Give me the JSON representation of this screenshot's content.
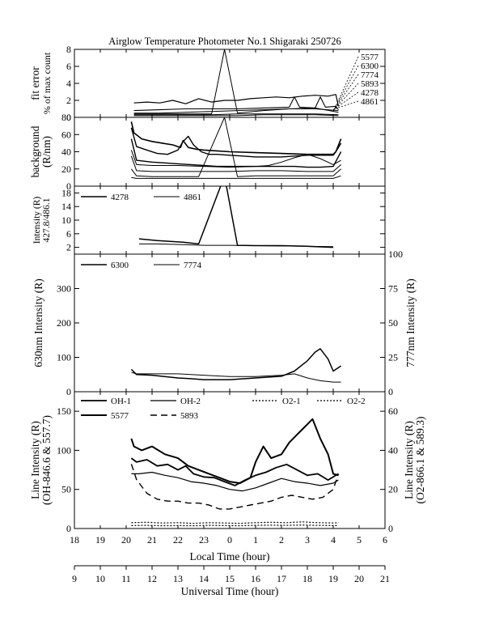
{
  "title": "Airglow Temperature Photometer No.1  Shigaraki  250726",
  "chart_data": [
    {
      "type": "line",
      "id": "fit-error",
      "ylabel": [
        "fit error",
        "% of max count"
      ],
      "ylim": [
        0,
        8
      ],
      "yticks": [
        0,
        2,
        4,
        6,
        8
      ],
      "xlim": [
        18,
        30
      ],
      "legend": [
        "5577",
        "6300",
        "7774",
        "5893",
        "4278",
        "4861"
      ],
      "series": [
        {
          "name": "5577",
          "width": 1.2,
          "dash": "",
          "x": [
            20.3,
            20.8,
            21.3,
            21.8,
            22.3,
            22.8,
            23.3,
            23.8,
            24.3,
            24.8,
            25.3,
            25.8,
            26.3,
            26.8,
            27.3,
            27.8,
            28.1,
            28.2
          ],
          "y": [
            1.7,
            1.8,
            1.7,
            2.0,
            1.6,
            2.2,
            1.8,
            2.0,
            2.0,
            2.2,
            2.3,
            2.4,
            2.3,
            2.5,
            2.6,
            2.5,
            2.7,
            1.3
          ]
        },
        {
          "name": "6300",
          "width": 1.1,
          "dash": "",
          "x": [
            20.3,
            21.3,
            22.3,
            23.3,
            24.3,
            25.3,
            26.3,
            26.5,
            26.7,
            27.3,
            27.5,
            27.7,
            28.1,
            28.2
          ],
          "y": [
            0.8,
            0.9,
            1.0,
            1.0,
            1.0,
            1.1,
            1.2,
            2.4,
            1.2,
            1.1,
            2.4,
            1.2,
            1.3,
            0.9
          ]
        },
        {
          "name": "7774",
          "width": 1,
          "dash": "",
          "x": [
            20.3,
            21.3,
            22.3,
            22.8,
            23.3,
            23.8,
            24.3,
            25.3,
            26.3,
            27.3,
            28.2
          ],
          "y": [
            0.4,
            0.4,
            0.4,
            0.4,
            0.4,
            8.0,
            0.5,
            0.8,
            1.0,
            1.1,
            0.6
          ]
        },
        {
          "name": "5893",
          "width": 1,
          "dash": "",
          "x": [
            20.3,
            21.3,
            22.3,
            23.3,
            24.3,
            25.3,
            26.3,
            27.3,
            28.2
          ],
          "y": [
            0.5,
            0.5,
            0.6,
            0.7,
            0.8,
            0.9,
            1.0,
            1.0,
            0.8
          ]
        },
        {
          "name": "4278",
          "width": 1,
          "dash": "",
          "x": [
            20.3,
            21.3,
            22.3,
            23.3,
            24.3,
            25.3,
            26.3,
            27.3,
            28.2
          ],
          "y": [
            0.3,
            0.3,
            0.3,
            0.3,
            0.4,
            0.4,
            0.4,
            0.4,
            0.3
          ]
        },
        {
          "name": "4861",
          "width": 1,
          "dash": "",
          "x": [
            20.3,
            21.3,
            22.3,
            23.3,
            24.3,
            25.3,
            26.3,
            27.3,
            28.2
          ],
          "y": [
            0.2,
            0.2,
            0.2,
            0.2,
            0.2,
            0.3,
            0.3,
            0.3,
            0.2
          ]
        }
      ]
    },
    {
      "type": "line",
      "id": "background",
      "ylabel": [
        "background",
        "(R/nm)"
      ],
      "ylim": [
        0,
        80
      ],
      "yticks": [
        0,
        20,
        40,
        60,
        80
      ],
      "xlim": [
        18,
        30
      ],
      "series": [
        {
          "name": "",
          "width": 1.6,
          "dash": "",
          "x": [
            20.2,
            20.3,
            20.6,
            21.0,
            21.4,
            21.8,
            22.1,
            22.2,
            22.4,
            22.7,
            23.0,
            23.5,
            24.0,
            25.0,
            26.0,
            27.0,
            28.0,
            28.1,
            28.3
          ],
          "y": [
            75,
            62,
            55,
            52,
            50,
            48,
            45,
            53,
            45,
            43,
            42,
            41,
            40,
            39,
            38,
            37,
            37,
            40,
            55
          ]
        },
        {
          "name": "",
          "width": 1.4,
          "dash": "",
          "x": [
            20.2,
            20.4,
            20.8,
            21.2,
            21.6,
            22.0,
            22.2,
            22.4,
            22.6,
            22.9,
            23.2,
            23.5,
            24.0,
            24.5,
            25.0,
            25.5,
            26.0,
            26.5,
            27.0,
            27.5,
            28.0,
            28.1,
            28.3
          ],
          "y": [
            68,
            46,
            42,
            38,
            37,
            42,
            52,
            58,
            48,
            40,
            37,
            37,
            36,
            35,
            34,
            34,
            34,
            35,
            36,
            36,
            36,
            40,
            50
          ]
        },
        {
          "name": "",
          "width": 1.4,
          "dash": "",
          "x": [
            20.2,
            20.4,
            21.0,
            21.5,
            22.0,
            22.5,
            23.0,
            23.5,
            24.0,
            24.5,
            25.0,
            25.5,
            26.0,
            26.5,
            27.0,
            27.5,
            28.0,
            28.3
          ],
          "y": [
            55,
            30,
            28,
            27,
            26,
            25,
            24,
            23,
            23,
            23,
            23,
            23,
            23,
            23,
            22,
            22,
            23,
            40
          ]
        },
        {
          "name": "",
          "width": 1,
          "dash": "",
          "x": [
            20.2,
            20.4,
            21.0,
            22.0,
            23.0,
            24.0,
            25.0,
            25.5,
            26.0,
            26.5,
            27.0,
            27.5,
            28.0,
            28.3
          ],
          "y": [
            42,
            25,
            24,
            24,
            23,
            22,
            23,
            24,
            28,
            33,
            37,
            32,
            25,
            30
          ]
        },
        {
          "name": "",
          "width": 1,
          "dash": "",
          "x": [
            20.2,
            20.4,
            21.0,
            22.0,
            23.0,
            24.0,
            25.0,
            26.0,
            27.0,
            28.0,
            28.3
          ],
          "y": [
            35,
            18,
            17,
            17,
            17,
            17,
            18,
            18,
            17,
            17,
            25
          ]
        },
        {
          "name": "",
          "width": 1,
          "dash": "",
          "x": [
            20.2,
            20.4,
            21.0,
            22.0,
            22.8,
            23.8,
            24.3,
            25.0,
            26.0,
            27.0,
            28.0,
            28.3
          ],
          "y": [
            20,
            12,
            11,
            11,
            11,
            80,
            11,
            12,
            12,
            12,
            12,
            20
          ]
        },
        {
          "name": "",
          "width": 1,
          "dash": "",
          "x": [
            20.2,
            20.4,
            21.0,
            22.0,
            23.0,
            24.0,
            25.0,
            26.0,
            27.0,
            28.0,
            28.3
          ],
          "y": [
            10,
            9,
            9,
            9,
            9,
            9,
            9,
            9,
            9,
            9,
            12
          ]
        }
      ]
    },
    {
      "type": "line",
      "id": "blue-lines",
      "ylabel": [
        "Intensity (R)",
        "427.8/486.1"
      ],
      "ylim": [
        0,
        20
      ],
      "yticks": [
        2,
        6,
        10,
        14,
        18
      ],
      "xlim": [
        18,
        30
      ],
      "legend": [
        "4278",
        "4861"
      ],
      "series": [
        {
          "name": "4278",
          "width": 1.5,
          "dash": "",
          "x": [
            20.5,
            21.2,
            22.2,
            22.8,
            23.8,
            24.3,
            25.0,
            26.0,
            27.0,
            28.0
          ],
          "y": [
            4.5,
            4.0,
            3.5,
            3.0,
            23.0,
            2.6,
            2.5,
            2.5,
            2.3,
            2.0
          ]
        },
        {
          "name": "4861",
          "width": 1,
          "dash": "",
          "x": [
            20.5,
            21.2,
            22.2,
            23.0,
            24.0,
            25.0,
            26.0,
            27.0,
            28.0
          ],
          "y": [
            3.0,
            3.0,
            2.8,
            2.6,
            2.6,
            2.5,
            2.4,
            2.3,
            2.2
          ]
        }
      ]
    },
    {
      "type": "line",
      "id": "red-lines",
      "ylabel": "630nm Intensity (R)",
      "ylabel_right": "777nm Intensity (R)",
      "ylim": [
        0,
        400
      ],
      "yticks": [
        0,
        100,
        200,
        300
      ],
      "ylim_right": [
        0,
        100
      ],
      "yticks_right": [
        0,
        25,
        50,
        75,
        100
      ],
      "xlim": [
        18,
        30
      ],
      "legend": [
        "6300",
        "7774"
      ],
      "series": [
        {
          "name": "6300",
          "axis": "left",
          "width": 1.5,
          "dash": "",
          "x": [
            20.2,
            20.4,
            21.0,
            22.0,
            22.5,
            23.0,
            24.0,
            25.0,
            26.0,
            26.5,
            27.0,
            27.3,
            27.5,
            27.8,
            28.0,
            28.3
          ],
          "y": [
            65,
            50,
            48,
            40,
            38,
            35,
            35,
            40,
            45,
            60,
            90,
            115,
            125,
            95,
            60,
            75
          ]
        },
        {
          "name": "7774",
          "axis": "right",
          "width": 1,
          "dash": "",
          "x": [
            20.2,
            20.4,
            21.0,
            22.0,
            23.0,
            24.0,
            25.0,
            26.0,
            26.5,
            27.0,
            27.5,
            28.0,
            28.3
          ],
          "y": [
            14,
            13,
            13,
            13,
            12,
            11,
            11,
            12,
            13,
            10,
            8,
            7,
            7
          ]
        }
      ]
    },
    {
      "type": "line",
      "id": "line-intensity",
      "ylabel": [
        "Line Intensity (R)",
        "(OH-846.6 & 557.7)"
      ],
      "ylabel_right": [
        "Line Intensity (R)",
        "(O2-866.1 & 589.3)"
      ],
      "ylim": [
        0,
        175
      ],
      "yticks": [
        0,
        50,
        100,
        150
      ],
      "ylim_right": [
        0,
        70
      ],
      "yticks_right": [
        0,
        20,
        40,
        60
      ],
      "xlim": [
        18,
        30
      ],
      "xlabel": "Local Time (hour)",
      "xticks": [
        18,
        19,
        20,
        21,
        22,
        23,
        24,
        25,
        26,
        27,
        28,
        29,
        30
      ],
      "xticklabels": [
        "18",
        "19",
        "20",
        "21",
        "22",
        "23",
        "0",
        "1",
        "2",
        "3",
        "4",
        "5",
        "6"
      ],
      "xlabel2": "Universal Time (hour)",
      "xticks2": [
        9,
        10,
        11,
        12,
        13,
        14,
        15,
        16,
        17,
        18,
        19,
        20,
        21
      ],
      "legend": [
        "OH-1",
        "OH-2",
        "O2-1",
        "O2-2",
        "5577",
        "5893"
      ],
      "series": [
        {
          "name": "OH-1",
          "axis": "left",
          "width": 1.8,
          "dash": "",
          "x": [
            20.2,
            20.4,
            20.8,
            21.2,
            21.6,
            22.0,
            22.3,
            22.6,
            23.0,
            23.4,
            23.8,
            24.2,
            24.6,
            25.0,
            25.4,
            25.8,
            26.2,
            26.6,
            27.0,
            27.4,
            27.8,
            28.2
          ],
          "y": [
            90,
            85,
            88,
            80,
            82,
            75,
            80,
            70,
            66,
            65,
            60,
            55,
            62,
            68,
            72,
            78,
            82,
            75,
            68,
            70,
            62,
            70
          ]
        },
        {
          "name": "OH-2",
          "axis": "left",
          "width": 1.2,
          "dash": "",
          "x": [
            20.2,
            20.5,
            21.0,
            21.5,
            22.0,
            22.5,
            23.0,
            23.5,
            24.0,
            24.5,
            25.0,
            25.5,
            26.0,
            26.5,
            27.0,
            27.5,
            28.0,
            28.2
          ],
          "y": [
            70,
            70,
            72,
            68,
            65,
            60,
            58,
            55,
            50,
            48,
            52,
            58,
            64,
            60,
            58,
            55,
            58,
            62
          ]
        },
        {
          "name": "O2-1",
          "axis": "right",
          "width": 1.2,
          "dash": "2,2",
          "x": [
            20.2,
            20.8,
            21.4,
            22.0,
            22.6,
            23.2,
            23.8,
            24.4,
            25.0,
            25.6,
            26.2,
            26.8,
            27.4,
            28.0,
            28.2
          ],
          "y": [
            3.0,
            3.2,
            2.8,
            3.0,
            2.6,
            3.0,
            2.8,
            2.6,
            3.0,
            3.2,
            3.0,
            3.4,
            3.0,
            2.8,
            3.0
          ]
        },
        {
          "name": "O2-2",
          "axis": "right",
          "width": 1.2,
          "dash": "2,2",
          "x": [
            20.2,
            20.8,
            21.4,
            22.0,
            22.6,
            23.2,
            23.8,
            24.4,
            25.0,
            25.6,
            26.2,
            26.8,
            27.4,
            28.0,
            28.2
          ],
          "y": [
            1.5,
            1.6,
            1.4,
            1.5,
            1.4,
            1.6,
            1.5,
            1.4,
            1.6,
            1.7,
            1.6,
            1.8,
            1.6,
            1.5,
            1.5
          ]
        },
        {
          "name": "5577",
          "axis": "left",
          "width": 2,
          "dash": "",
          "x": [
            20.2,
            20.3,
            20.6,
            21.0,
            21.5,
            22.0,
            22.4,
            22.8,
            23.2,
            23.6,
            24.0,
            24.4,
            24.8,
            25.0,
            25.3,
            25.6,
            26.0,
            26.3,
            26.6,
            26.9,
            27.2,
            27.5,
            27.8,
            28.0,
            28.2
          ],
          "y": [
            115,
            105,
            100,
            105,
            95,
            90,
            80,
            75,
            70,
            65,
            60,
            58,
            65,
            85,
            105,
            90,
            95,
            110,
            120,
            130,
            140,
            115,
            95,
            70,
            68
          ]
        },
        {
          "name": "5893",
          "axis": "right",
          "width": 1.4,
          "dash": "8,5",
          "x": [
            20.2,
            20.4,
            20.8,
            21.2,
            21.6,
            22.0,
            22.4,
            22.8,
            23.2,
            23.6,
            24.0,
            24.4,
            24.8,
            25.2,
            25.6,
            26.0,
            26.4,
            26.8,
            27.2,
            27.6,
            28.0,
            28.2
          ],
          "y": [
            33,
            25,
            18,
            15,
            14,
            14,
            13,
            13,
            12,
            10,
            10,
            11,
            12,
            13,
            14,
            16,
            17,
            16,
            15,
            16,
            20,
            28
          ]
        }
      ]
    }
  ]
}
